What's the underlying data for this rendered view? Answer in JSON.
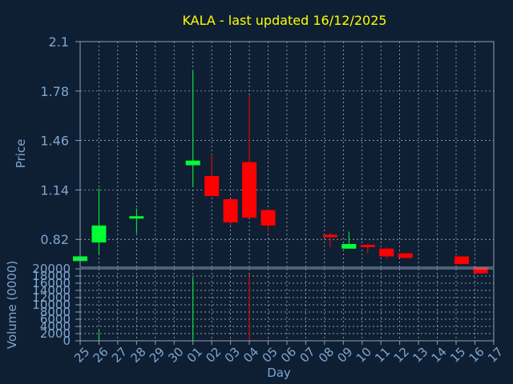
{
  "chart_data": {
    "type": "candlestick",
    "title": "KALA - last updated 16/12/2025",
    "xlabel": "Day",
    "price_panel": {
      "ylabel": "Price",
      "ylim": [
        0.64,
        2.1
      ],
      "yticks": [
        "2.1",
        "1.78",
        "1.46",
        "1.14",
        "0.82"
      ]
    },
    "volume_panel": {
      "ylabel": "Volume (0000)",
      "ylim": [
        0,
        20000
      ],
      "yticks": [
        "20000",
        "18000",
        "16000",
        "14000",
        "12000",
        "10000",
        "8000",
        "6000",
        "4000",
        "2000",
        "0"
      ]
    },
    "x_ticks": [
      "25",
      "26",
      "27",
      "28",
      "29",
      "30",
      "01",
      "02",
      "03",
      "04",
      "05",
      "06",
      "07",
      "08",
      "09",
      "10",
      "11",
      "12",
      "13",
      "14",
      "15",
      "16",
      "17"
    ],
    "candles": [
      {
        "x": 0,
        "open": 0.68,
        "close": 0.71,
        "high": 0.71,
        "low": 0.68,
        "volume": 0
      },
      {
        "x": 1,
        "open": 0.8,
        "close": 0.91,
        "high": 1.15,
        "low": 0.72,
        "volume": 3000
      },
      {
        "x": 3,
        "open": 0.96,
        "close": 0.97,
        "high": 1.02,
        "low": 0.86,
        "volume": 0
      },
      {
        "x": 6,
        "open": 1.3,
        "close": 1.33,
        "high": 1.91,
        "low": 1.16,
        "volume": 17500
      },
      {
        "x": 7,
        "open": 1.23,
        "close": 1.1,
        "high": 1.37,
        "low": 1.1,
        "volume": 500
      },
      {
        "x": 8,
        "open": 1.08,
        "close": 0.93,
        "high": 1.08,
        "low": 0.91,
        "volume": 400
      },
      {
        "x": 9,
        "open": 1.32,
        "close": 0.96,
        "high": 1.75,
        "low": 0.96,
        "volume": 18500
      },
      {
        "x": 10,
        "open": 1.01,
        "close": 0.91,
        "high": 1.01,
        "low": 0.87,
        "volume": 400
      },
      {
        "x": 13.3,
        "open": 0.85,
        "close": 0.835,
        "high": 0.86,
        "low": 0.77,
        "volume": 0
      },
      {
        "x": 14.3,
        "open": 0.76,
        "close": 0.79,
        "high": 0.87,
        "low": 0.76,
        "volume": 0
      },
      {
        "x": 15.3,
        "open": 0.785,
        "close": 0.77,
        "high": 0.79,
        "low": 0.73,
        "volume": 0
      },
      {
        "x": 16.3,
        "open": 0.76,
        "close": 0.71,
        "high": 0.77,
        "low": 0.7,
        "volume": 0
      },
      {
        "x": 17.3,
        "open": 0.73,
        "close": 0.7,
        "high": 0.73,
        "low": 0.7,
        "volume": 0
      },
      {
        "x": 20.3,
        "open": 0.71,
        "close": 0.66,
        "high": 0.71,
        "low": 0.66,
        "volume": 0
      },
      {
        "x": 21.3,
        "open": 0.64,
        "close": 0.6,
        "high": 0.64,
        "low": 0.6,
        "volume": 0
      }
    ],
    "grid": true,
    "colors": {
      "background": "#0f1f33",
      "up": "#00ff33",
      "down": "#ff0000",
      "grid": "#b8c4d0",
      "axis_text": "#7fa6d0",
      "title": "#ffff00",
      "frame": "#8ca0b8"
    }
  }
}
